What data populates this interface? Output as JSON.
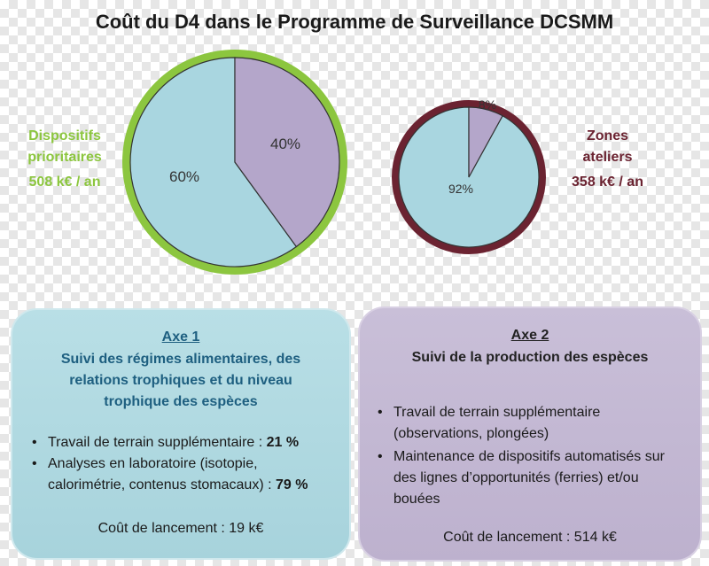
{
  "title": "Coût du D4 dans le Programme de Surveillance DCSMM",
  "left_label": {
    "line1": "Dispositifs",
    "line2": "prioritaires",
    "line3": "508 k€ / an",
    "color": "#8cc63f"
  },
  "right_label": {
    "line1": "Zones",
    "line2": "ateliers",
    "line3": "358 k€ / an",
    "color": "#6b2331"
  },
  "chart_data": [
    {
      "type": "pie",
      "title": "",
      "categories": [
        "",
        ""
      ],
      "values": [
        60,
        40
      ],
      "labels": [
        "60%",
        "40%"
      ],
      "colors": [
        "#a9d6e0",
        "#b4a6ca"
      ],
      "ring_color": "#8cc63f"
    },
    {
      "type": "pie",
      "title": "",
      "categories": [
        "",
        ""
      ],
      "values": [
        92,
        8
      ],
      "labels": [
        "92%",
        "8%"
      ],
      "colors": [
        "#a9d6e0",
        "#b4a6ca"
      ],
      "ring_color": "#6b2331"
    }
  ],
  "axe1": {
    "title": "Axe 1",
    "subtitle": [
      "Suivi des régimes alimentaires, des",
      "relations trophiques et du niveau",
      "trophique des espèces"
    ],
    "bullets": [
      {
        "text": "Travail de terrain supplémentaire : ",
        "value": "21 %"
      },
      {
        "text": "Analyses en laboratoire (isotopie, calorimétrie, contenus stomacaux) : ",
        "value": "79 %"
      }
    ],
    "cost": "Coût de lancement : 19 k€"
  },
  "axe2": {
    "title": "Axe 2",
    "subtitle": "Suivi de la production des espèces",
    "bullets": [
      "Travail de terrain supplémentaire (observations, plongées)",
      "Maintenance de dispositifs automatisés sur des lignes d’opportunités (ferries) et/ou bouées"
    ],
    "cost": "Coût de lancement : 514 k€"
  }
}
